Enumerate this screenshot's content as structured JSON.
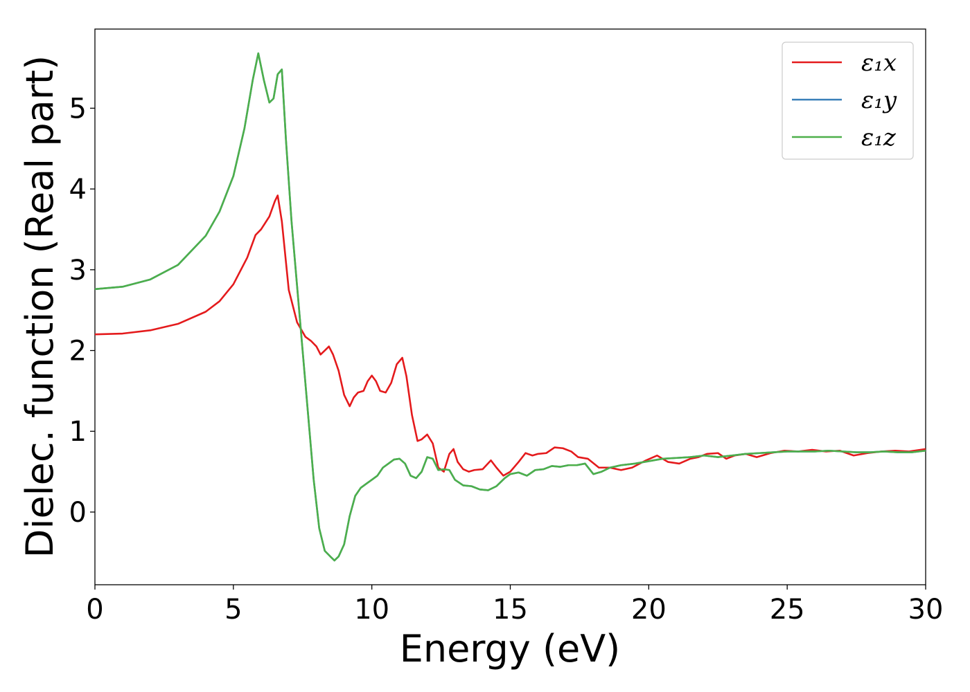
{
  "chart_data": {
    "type": "line",
    "title": "",
    "xlabel": "Energy (eV)",
    "ylabel": "Dielec. function (Real part)",
    "xlim": [
      0,
      30
    ],
    "ylim": [
      -0.9,
      5.98
    ],
    "xticks": [
      0,
      5,
      10,
      15,
      20,
      25,
      30
    ],
    "yticks": [
      0,
      1,
      2,
      3,
      4,
      5
    ],
    "grid": false,
    "legend_position": "top-right",
    "series": [
      {
        "name": "ε₁x",
        "color": "#e41a1c",
        "x": [
          0,
          1,
          2,
          3,
          4,
          4.5,
          5,
          5.5,
          5.8,
          6.0,
          6.3,
          6.5,
          6.6,
          6.75,
          7.0,
          7.3,
          7.6,
          7.8,
          8.0,
          8.15,
          8.3,
          8.45,
          8.6,
          8.8,
          9.0,
          9.2,
          9.35,
          9.5,
          9.7,
          9.85,
          10.0,
          10.15,
          10.3,
          10.5,
          10.7,
          10.9,
          11.1,
          11.25,
          11.45,
          11.65,
          11.8,
          12.0,
          12.2,
          12.4,
          12.6,
          12.8,
          12.95,
          13.1,
          13.3,
          13.5,
          13.7,
          14.0,
          14.3,
          14.5,
          14.75,
          15.0,
          15.3,
          15.55,
          15.8,
          16.0,
          16.3,
          16.6,
          16.9,
          17.2,
          17.45,
          17.8,
          18.2,
          18.6,
          19.0,
          19.4,
          19.9,
          20.3,
          20.7,
          21.1,
          21.5,
          21.8,
          22.1,
          22.5,
          22.8,
          23.1,
          23.5,
          23.9,
          24.4,
          24.9,
          25.4,
          25.9,
          26.4,
          26.9,
          27.4,
          27.9,
          28.4,
          28.9,
          29.4,
          30.0
        ],
        "y": [
          2.2,
          2.21,
          2.25,
          2.33,
          2.48,
          2.61,
          2.82,
          3.15,
          3.43,
          3.5,
          3.66,
          3.85,
          3.92,
          3.6,
          2.75,
          2.35,
          2.17,
          2.12,
          2.05,
          1.95,
          2.0,
          2.05,
          1.95,
          1.75,
          1.45,
          1.31,
          1.42,
          1.48,
          1.5,
          1.62,
          1.69,
          1.62,
          1.5,
          1.48,
          1.6,
          1.83,
          1.91,
          1.68,
          1.2,
          0.88,
          0.9,
          0.96,
          0.85,
          0.55,
          0.5,
          0.72,
          0.78,
          0.62,
          0.53,
          0.5,
          0.52,
          0.53,
          0.64,
          0.55,
          0.45,
          0.5,
          0.62,
          0.73,
          0.7,
          0.72,
          0.73,
          0.8,
          0.79,
          0.75,
          0.68,
          0.66,
          0.55,
          0.55,
          0.52,
          0.55,
          0.64,
          0.7,
          0.62,
          0.6,
          0.66,
          0.68,
          0.72,
          0.73,
          0.66,
          0.7,
          0.72,
          0.68,
          0.73,
          0.76,
          0.75,
          0.77,
          0.75,
          0.76,
          0.7,
          0.73,
          0.75,
          0.76,
          0.75,
          0.78
        ]
      },
      {
        "name": "ε₁y",
        "color": "#377eb8",
        "x": [
          0,
          1,
          2,
          3,
          4,
          4.5,
          5,
          5.4,
          5.7,
          5.9,
          6.1,
          6.3,
          6.45,
          6.6,
          6.75,
          6.9,
          7.1,
          7.3,
          7.5,
          7.7,
          7.9,
          8.1,
          8.3,
          8.5,
          8.65,
          8.8,
          9.0,
          9.2,
          9.4,
          9.6,
          9.8,
          10.0,
          10.2,
          10.4,
          10.6,
          10.8,
          11.0,
          11.2,
          11.4,
          11.6,
          11.8,
          12.0,
          12.2,
          12.4,
          12.6,
          12.8,
          13.0,
          13.3,
          13.6,
          13.9,
          14.2,
          14.5,
          14.8,
          15.0,
          15.3,
          15.6,
          15.9,
          16.2,
          16.5,
          16.8,
          17.1,
          17.4,
          17.7,
          18.0,
          18.3,
          18.6,
          19.0,
          19.5,
          20.0,
          20.5,
          21.0,
          21.5,
          22.0,
          22.5,
          23.0,
          23.5,
          24.0,
          24.5,
          25.0,
          25.5,
          26.0,
          26.5,
          27.0,
          27.5,
          28.0,
          28.5,
          29.0,
          29.5,
          30.0
        ],
        "y": [
          2.76,
          2.79,
          2.88,
          3.06,
          3.42,
          3.72,
          4.16,
          4.75,
          5.35,
          5.68,
          5.35,
          5.07,
          5.12,
          5.42,
          5.48,
          4.6,
          3.6,
          2.8,
          2.0,
          1.2,
          0.4,
          -0.2,
          -0.48,
          -0.55,
          -0.6,
          -0.55,
          -0.4,
          -0.05,
          0.2,
          0.3,
          0.35,
          0.4,
          0.45,
          0.55,
          0.6,
          0.65,
          0.66,
          0.6,
          0.45,
          0.42,
          0.5,
          0.68,
          0.66,
          0.52,
          0.53,
          0.52,
          0.4,
          0.33,
          0.32,
          0.28,
          0.27,
          0.32,
          0.42,
          0.47,
          0.49,
          0.45,
          0.52,
          0.53,
          0.57,
          0.56,
          0.58,
          0.58,
          0.6,
          0.47,
          0.5,
          0.55,
          0.58,
          0.6,
          0.63,
          0.66,
          0.67,
          0.68,
          0.7,
          0.68,
          0.7,
          0.72,
          0.73,
          0.74,
          0.75,
          0.75,
          0.75,
          0.76,
          0.75,
          0.74,
          0.74,
          0.75,
          0.74,
          0.74,
          0.76
        ]
      },
      {
        "name": "ε₁z",
        "color": "#4daf4a",
        "x": [
          0,
          1,
          2,
          3,
          4,
          4.5,
          5,
          5.4,
          5.7,
          5.9,
          6.1,
          6.3,
          6.45,
          6.6,
          6.75,
          6.9,
          7.1,
          7.3,
          7.5,
          7.7,
          7.9,
          8.1,
          8.3,
          8.5,
          8.65,
          8.8,
          9.0,
          9.2,
          9.4,
          9.6,
          9.8,
          10.0,
          10.2,
          10.4,
          10.6,
          10.8,
          11.0,
          11.2,
          11.4,
          11.6,
          11.8,
          12.0,
          12.2,
          12.4,
          12.6,
          12.8,
          13.0,
          13.3,
          13.6,
          13.9,
          14.2,
          14.5,
          14.8,
          15.0,
          15.3,
          15.6,
          15.9,
          16.2,
          16.5,
          16.8,
          17.1,
          17.4,
          17.7,
          18.0,
          18.3,
          18.6,
          19.0,
          19.5,
          20.0,
          20.5,
          21.0,
          21.5,
          22.0,
          22.5,
          23.0,
          23.5,
          24.0,
          24.5,
          25.0,
          25.5,
          26.0,
          26.5,
          27.0,
          27.5,
          28.0,
          28.5,
          29.0,
          29.5,
          30.0
        ],
        "y": [
          2.76,
          2.79,
          2.88,
          3.06,
          3.42,
          3.72,
          4.16,
          4.75,
          5.35,
          5.68,
          5.35,
          5.07,
          5.12,
          5.42,
          5.48,
          4.6,
          3.6,
          2.8,
          2.0,
          1.2,
          0.4,
          -0.2,
          -0.48,
          -0.55,
          -0.6,
          -0.55,
          -0.4,
          -0.05,
          0.2,
          0.3,
          0.35,
          0.4,
          0.45,
          0.55,
          0.6,
          0.65,
          0.66,
          0.6,
          0.45,
          0.42,
          0.5,
          0.68,
          0.66,
          0.52,
          0.53,
          0.52,
          0.4,
          0.33,
          0.32,
          0.28,
          0.27,
          0.32,
          0.42,
          0.47,
          0.49,
          0.45,
          0.52,
          0.53,
          0.57,
          0.56,
          0.58,
          0.58,
          0.6,
          0.47,
          0.5,
          0.55,
          0.58,
          0.6,
          0.63,
          0.66,
          0.67,
          0.68,
          0.7,
          0.68,
          0.7,
          0.72,
          0.73,
          0.74,
          0.75,
          0.75,
          0.75,
          0.76,
          0.75,
          0.74,
          0.74,
          0.75,
          0.74,
          0.74,
          0.76
        ]
      }
    ]
  }
}
